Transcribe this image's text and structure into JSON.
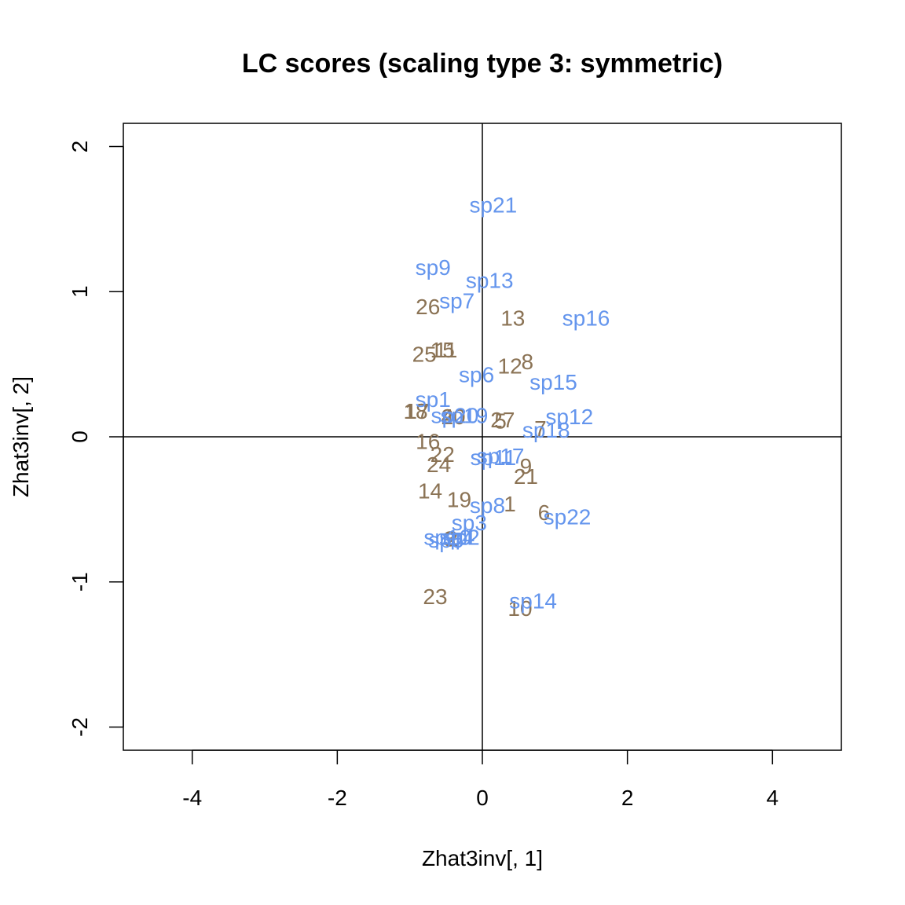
{
  "chart_data": {
    "type": "scatter",
    "title": "LC scores (scaling type 3: symmetric)",
    "xlabel": "Zhat3inv[, 1]",
    "ylabel": "Zhat3inv[, 2]",
    "xlim": [
      -4.95,
      4.95
    ],
    "ylim": [
      -2.16,
      2.16
    ],
    "xticks": [
      -4,
      -2,
      0,
      2,
      4
    ],
    "yticks": [
      -2,
      -1,
      0,
      1,
      2
    ],
    "reference_lines": {
      "x": 0,
      "y": 0
    },
    "colors": {
      "sites": "#8b7355",
      "species": "#6495ed"
    },
    "series": [
      {
        "points": [
          {
            "label": "1",
            "x": 0.38,
            "y": -0.46
          },
          {
            "label": "2",
            "x": -0.42,
            "y": -0.7
          },
          {
            "label": "3",
            "x": -0.45,
            "y": -0.7
          },
          {
            "label": "4",
            "x": -0.48,
            "y": 0.14
          },
          {
            "label": "5",
            "x": 0.25,
            "y": 0.11
          },
          {
            "label": "6",
            "x": 0.85,
            "y": -0.52
          },
          {
            "label": "7",
            "x": 0.8,
            "y": 0.06
          },
          {
            "label": "8",
            "x": 0.62,
            "y": 0.52
          },
          {
            "label": "9",
            "x": 0.6,
            "y": -0.2
          },
          {
            "label": "10",
            "x": 0.52,
            "y": -1.18
          },
          {
            "label": "11",
            "x": -0.5,
            "y": 0.6
          },
          {
            "label": "12",
            "x": 0.38,
            "y": 0.49
          },
          {
            "label": "13",
            "x": 0.42,
            "y": 0.82
          },
          {
            "label": "14",
            "x": -0.72,
            "y": -0.37
          },
          {
            "label": "15",
            "x": -0.55,
            "y": 0.6
          },
          {
            "label": "16",
            "x": -0.75,
            "y": -0.03
          },
          {
            "label": "17",
            "x": -0.9,
            "y": 0.18
          },
          {
            "label": "18",
            "x": -0.92,
            "y": 0.18
          },
          {
            "label": "19",
            "x": -0.32,
            "y": -0.43
          },
          {
            "label": "20",
            "x": -0.4,
            "y": 0.14
          },
          {
            "label": "21",
            "x": 0.6,
            "y": -0.27
          },
          {
            "label": "22",
            "x": -0.55,
            "y": -0.12
          },
          {
            "label": "23",
            "x": -0.65,
            "y": -1.1
          },
          {
            "label": "24",
            "x": -0.6,
            "y": -0.19
          },
          {
            "label": "25",
            "x": -0.8,
            "y": 0.57
          },
          {
            "label": "26",
            "x": -0.75,
            "y": 0.9
          },
          {
            "label": "27",
            "x": 0.28,
            "y": 0.12
          }
        ]
      },
      {
        "points": [
          {
            "label": "sp1",
            "x": -0.68,
            "y": 0.26
          },
          {
            "label": "sp2",
            "x": -0.28,
            "y": -0.69
          },
          {
            "label": "sp3",
            "x": -0.18,
            "y": -0.59
          },
          {
            "label": "sp4",
            "x": -0.35,
            "y": -0.69
          },
          {
            "label": "sp5",
            "x": -0.5,
            "y": -0.71
          },
          {
            "label": "sp6",
            "x": -0.08,
            "y": 0.43
          },
          {
            "label": "sp7",
            "x": -0.35,
            "y": 0.94
          },
          {
            "label": "sp8",
            "x": 0.07,
            "y": -0.47
          },
          {
            "label": "sp9",
            "x": -0.68,
            "y": 1.17
          },
          {
            "label": "sp10",
            "x": -0.48,
            "y": -0.69
          },
          {
            "label": "sp11",
            "x": 0.15,
            "y": -0.14
          },
          {
            "label": "sp12",
            "x": 1.2,
            "y": 0.14
          },
          {
            "label": "sp13",
            "x": 0.1,
            "y": 1.08
          },
          {
            "label": "sp14",
            "x": 0.7,
            "y": -1.13
          },
          {
            "label": "sp15",
            "x": 0.98,
            "y": 0.38
          },
          {
            "label": "sp16",
            "x": 1.43,
            "y": 0.82
          },
          {
            "label": "sp17",
            "x": 0.25,
            "y": -0.13
          },
          {
            "label": "sp18",
            "x": 0.88,
            "y": 0.05
          },
          {
            "label": "sp19",
            "x": -0.25,
            "y": 0.15
          },
          {
            "label": "sp20",
            "x": -0.38,
            "y": 0.15
          },
          {
            "label": "sp21",
            "x": 0.15,
            "y": 1.6
          },
          {
            "label": "sp22",
            "x": 1.17,
            "y": -0.55
          }
        ]
      }
    ]
  }
}
